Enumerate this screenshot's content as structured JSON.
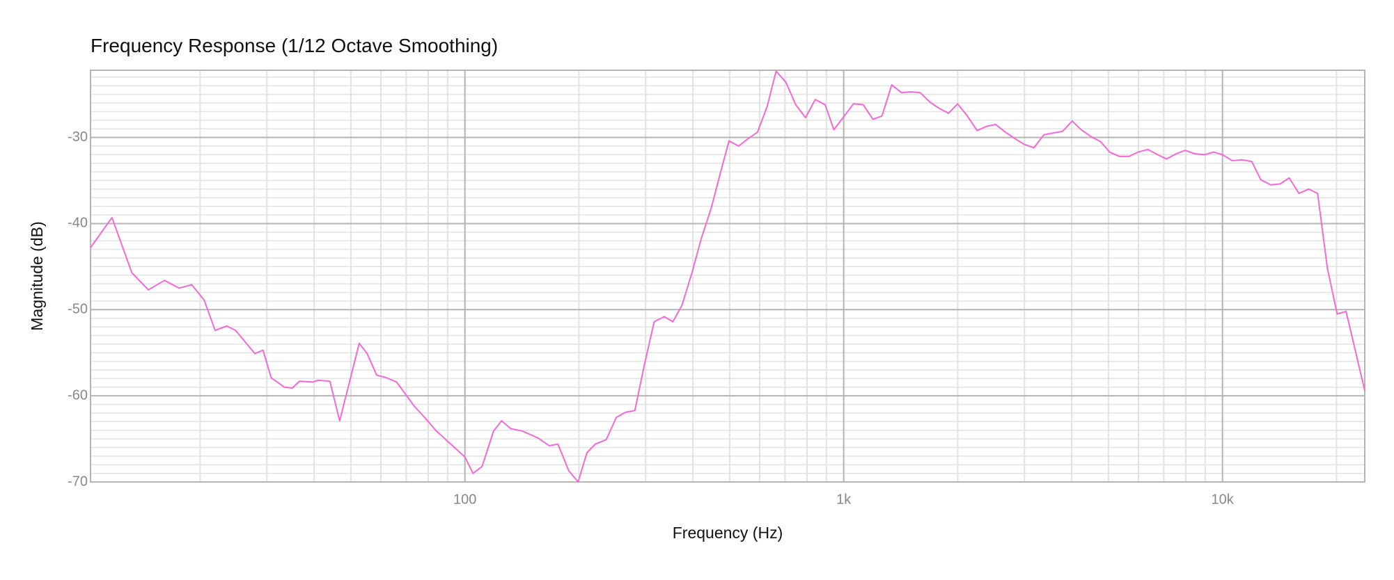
{
  "chart_data": {
    "type": "line",
    "title": "Frequency Response",
    "subtitle": "(1/12 Octave Smoothing)",
    "x_label": "Frequency (Hz)",
    "y_label": "Magnitude (dB)",
    "x_scale": "log",
    "grid": true,
    "xlim": [
      10.27,
      23746
    ],
    "ylim": [
      -70,
      -22.2
    ],
    "xticks": [
      {
        "value": 100,
        "label": "100"
      },
      {
        "value": 1000,
        "label": "1k"
      },
      {
        "value": 10000,
        "label": "10k"
      }
    ],
    "yticks": [
      -70,
      -60,
      -50,
      -40,
      -30
    ],
    "x_minor_ticks": [
      20,
      30,
      40,
      50,
      60,
      70,
      80,
      90,
      200,
      300,
      400,
      500,
      600,
      700,
      800,
      900,
      2000,
      3000,
      4000,
      5000,
      6000,
      7000,
      8000,
      9000,
      20000
    ],
    "y_minor_ticks": [
      -69,
      -68,
      -67,
      -66,
      -65,
      -64,
      -63,
      -62,
      -61,
      -59,
      -58,
      -57,
      -56,
      -55,
      -54,
      -53,
      -52,
      -51,
      -49,
      -48,
      -47,
      -46,
      -45,
      -44,
      -43,
      -42,
      -41,
      -39,
      -38,
      -37,
      -36,
      -35,
      -34,
      -33,
      -32,
      -31,
      -29,
      -28,
      -27,
      -26,
      -25,
      -24,
      -23
    ],
    "x": [
      10.27,
      11.7,
      13.2,
      14.6,
      16.1,
      17.6,
      19.0,
      20.5,
      21.9,
      23.5,
      24.8,
      27.9,
      29.3,
      30.8,
      33.4,
      35.0,
      36.6,
      39.7,
      41.0,
      44.0,
      46.7,
      52.6,
      55.2,
      58.5,
      62.1,
      66.0,
      73.5,
      80.1,
      83.7,
      91.7,
      100,
      105,
      111,
      119,
      125,
      132,
      142,
      156,
      167,
      176,
      188,
      199,
      210,
      221,
      236,
      251,
      266,
      281,
      298,
      316,
      336,
      354,
      374,
      397,
      421,
      447,
      472,
      498,
      528,
      561,
      592,
      628,
      663,
      704,
      747,
      793,
      841,
      893,
      942,
      1000,
      1061,
      1126,
      1195,
      1262,
      1339,
      1421,
      1500,
      1592,
      1689,
      1783,
      1892,
      1998,
      2120,
      2250,
      2388,
      2520,
      2675,
      2823,
      2995,
      3178,
      3374,
      3561,
      3780,
      4011,
      4235,
      4494,
      4770,
      5035,
      5343,
      5670,
      5984,
      6351,
      6740,
      7114,
      7550,
      7968,
      8457,
      8976,
      9474,
      10000,
      10612,
      11262,
      11951,
      12616,
      13389,
      14209,
      14998,
      15916,
      16892,
      17830,
      18923,
      20082,
      21197,
      23746
    ],
    "series": [
      {
        "color": "#f468d6",
        "values": [
          -42.8,
          -39.3,
          -45.7,
          -47.7,
          -46.6,
          -47.5,
          -47.1,
          -48.9,
          -52.4,
          -51.9,
          -52.4,
          -55.1,
          -54.7,
          -57.9,
          -59.0,
          -59.1,
          -58.3,
          -58.4,
          -58.2,
          -58.3,
          -62.9,
          -53.9,
          -55.1,
          -57.6,
          -57.9,
          -58.4,
          -61.2,
          -63.0,
          -64.0,
          -65.6,
          -67.1,
          -69.0,
          -68.2,
          -64.1,
          -62.9,
          -63.8,
          -64.1,
          -64.9,
          -65.8,
          -65.6,
          -68.7,
          -70.0,
          -66.6,
          -65.6,
          -65.1,
          -62.5,
          -61.9,
          -61.7,
          -56.3,
          -51.4,
          -50.8,
          -51.4,
          -49.5,
          -45.8,
          -41.7,
          -38.2,
          -34.2,
          -30.4,
          -31.0,
          -30.1,
          -29.4,
          -26.4,
          -22.3,
          -23.6,
          -26.2,
          -27.7,
          -25.6,
          -26.2,
          -29.1,
          -27.6,
          -26.1,
          -26.2,
          -27.9,
          -27.5,
          -23.9,
          -24.8,
          -24.7,
          -24.8,
          -25.9,
          -26.6,
          -27.2,
          -26.1,
          -27.5,
          -29.2,
          -28.7,
          -28.5,
          -29.4,
          -30.1,
          -30.8,
          -31.2,
          -29.7,
          -29.5,
          -29.3,
          -28.1,
          -29.1,
          -29.9,
          -30.5,
          -31.7,
          -32.2,
          -32.2,
          -31.7,
          -31.4,
          -32.0,
          -32.5,
          -31.9,
          -31.5,
          -31.9,
          -32.0,
          -31.7,
          -32.0,
          -32.7,
          -32.6,
          -32.8,
          -34.9,
          -35.5,
          -35.4,
          -34.7,
          -36.5,
          -36.0,
          -36.5,
          -45.2,
          -50.5,
          -50.2,
          -59.4
        ]
      }
    ]
  }
}
